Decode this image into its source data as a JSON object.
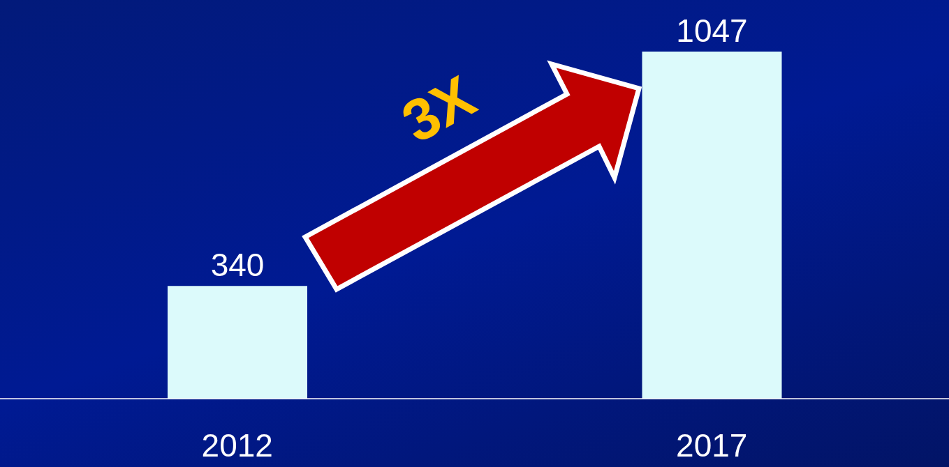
{
  "chart_data": {
    "type": "bar",
    "categories": [
      "2012",
      "2017"
    ],
    "values": [
      340,
      1047
    ],
    "color": "#dcfafb",
    "data_labels": true,
    "annotations": [
      "3X"
    ]
  }
}
